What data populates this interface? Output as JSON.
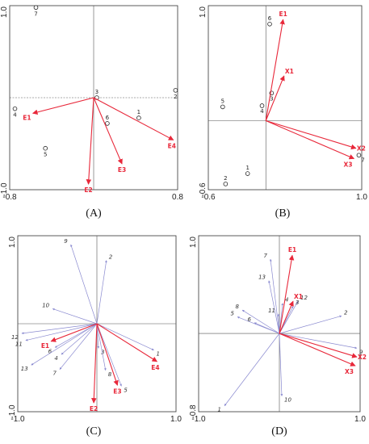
{
  "colors": {
    "red": "#e8283a",
    "blue": "#8a8ad0",
    "axis": "#555555",
    "frame": "#333333"
  },
  "chart_data": [
    {
      "type": "scatter",
      "caption": "(A)",
      "xlim": [
        -0.8,
        0.8
      ],
      "ylim": [
        -1.0,
        1.0
      ],
      "tick_labels": {
        "x_min": "-0.8",
        "x_max": "0.8",
        "y_min": "-1.0",
        "y_max": "1.0"
      },
      "points": [
        {
          "label": "7",
          "x": -0.55,
          "y": 0.98
        },
        {
          "label": "2",
          "x": 0.78,
          "y": 0.08
        },
        {
          "label": "3",
          "x": 0.03,
          "y": 0.0
        },
        {
          "label": "4",
          "x": -0.75,
          "y": -0.12
        },
        {
          "label": "1",
          "x": 0.43,
          "y": -0.22
        },
        {
          "label": "6",
          "x": 0.13,
          "y": -0.28
        },
        {
          "label": "5",
          "x": -0.46,
          "y": -0.55
        }
      ],
      "vectors": [
        {
          "label": "E1",
          "x": -0.58,
          "y": -0.17
        },
        {
          "label": "E4",
          "x": 0.76,
          "y": -0.46
        },
        {
          "label": "E3",
          "x": 0.27,
          "y": -0.72
        },
        {
          "label": "E2",
          "x": -0.05,
          "y": -0.94
        }
      ]
    },
    {
      "type": "scatter",
      "caption": "(B)",
      "xlim": [
        -0.6,
        1.0
      ],
      "ylim": [
        -0.6,
        1.0
      ],
      "tick_labels": {
        "x_min": "-0.6",
        "x_max": "1.0",
        "y_min": "-0.6",
        "y_max": "1.0"
      },
      "points": [
        {
          "label": "6",
          "x": 0.04,
          "y": 0.84
        },
        {
          "label": "3",
          "x": 0.06,
          "y": 0.24
        },
        {
          "label": "4",
          "x": -0.04,
          "y": 0.13
        },
        {
          "label": "5",
          "x": -0.45,
          "y": 0.12
        },
        {
          "label": "1",
          "x": -0.19,
          "y": -0.46
        },
        {
          "label": "2",
          "x": -0.42,
          "y": -0.55
        },
        {
          "label": "7",
          "x": 0.97,
          "y": -0.3
        }
      ],
      "vectors": [
        {
          "label": "E1",
          "x": 0.18,
          "y": 0.88
        },
        {
          "label": "X1",
          "x": 0.19,
          "y": 0.39
        },
        {
          "label": "X2",
          "x": 0.94,
          "y": -0.24
        },
        {
          "label": "X3",
          "x": 0.92,
          "y": -0.33
        }
      ]
    },
    {
      "type": "scatter",
      "caption": "(C)",
      "xlim": [
        -1.0,
        1.0
      ],
      "ylim": [
        -1.0,
        1.0
      ],
      "tick_labels": {
        "x_min": "-1.0",
        "x_max": "1.0",
        "y_min": "-1.0",
        "y_max": "1.0"
      },
      "species": [
        {
          "label": "9",
          "x": -0.33,
          "y": 0.9
        },
        {
          "label": "2",
          "x": 0.12,
          "y": 0.72
        },
        {
          "label": "10",
          "x": -0.56,
          "y": 0.17
        },
        {
          "label": "12",
          "x": -0.95,
          "y": -0.11
        },
        {
          "label": "11",
          "x": -0.9,
          "y": -0.19
        },
        {
          "label": "6",
          "x": -0.53,
          "y": -0.27
        },
        {
          "label": "4",
          "x": -0.45,
          "y": -0.35
        },
        {
          "label": "13",
          "x": -0.83,
          "y": -0.47
        },
        {
          "label": "7",
          "x": -0.47,
          "y": -0.52
        },
        {
          "label": "3",
          "x": 0.02,
          "y": -0.28
        },
        {
          "label": "8",
          "x": 0.11,
          "y": -0.53
        },
        {
          "label": "5",
          "x": 0.31,
          "y": -0.71
        },
        {
          "label": "1",
          "x": 0.72,
          "y": -0.3
        }
      ],
      "vectors": [
        {
          "label": "E1",
          "x": -0.58,
          "y": -0.2
        },
        {
          "label": "E4",
          "x": 0.76,
          "y": -0.43
        },
        {
          "label": "E3",
          "x": 0.26,
          "y": -0.7
        },
        {
          "label": "E2",
          "x": -0.04,
          "y": -0.9
        }
      ]
    },
    {
      "type": "scatter",
      "caption": "(D)",
      "xlim": [
        -1.0,
        1.0
      ],
      "ylim": [
        -0.8,
        1.0
      ],
      "tick_labels": {
        "x_min": "-1.0",
        "x_max": "1.0",
        "y_min": "-0.8",
        "y_max": "1.0"
      },
      "species": [
        {
          "label": "7",
          "x": -0.11,
          "y": 0.76
        },
        {
          "label": "13",
          "x": -0.13,
          "y": 0.54
        },
        {
          "label": "12",
          "x": 0.23,
          "y": 0.33
        },
        {
          "label": "3",
          "x": 0.17,
          "y": 0.28
        },
        {
          "label": "4",
          "x": 0.04,
          "y": 0.31
        },
        {
          "label": "11",
          "x": -0.01,
          "y": 0.2
        },
        {
          "label": "8",
          "x": -0.46,
          "y": 0.24
        },
        {
          "label": "5",
          "x": -0.52,
          "y": 0.17
        },
        {
          "label": "6",
          "x": -0.31,
          "y": 0.11
        },
        {
          "label": "2",
          "x": 0.77,
          "y": 0.18
        },
        {
          "label": "9",
          "x": 0.96,
          "y": -0.15
        },
        {
          "label": "10",
          "x": 0.03,
          "y": -0.64
        },
        {
          "label": "1",
          "x": -0.68,
          "y": -0.74
        }
      ],
      "vectors": [
        {
          "label": "E1",
          "x": 0.16,
          "y": 0.8
        },
        {
          "label": "X1",
          "x": 0.17,
          "y": 0.33
        },
        {
          "label": "X2",
          "x": 0.96,
          "y": -0.24
        },
        {
          "label": "X3",
          "x": 0.94,
          "y": -0.33
        }
      ]
    }
  ]
}
